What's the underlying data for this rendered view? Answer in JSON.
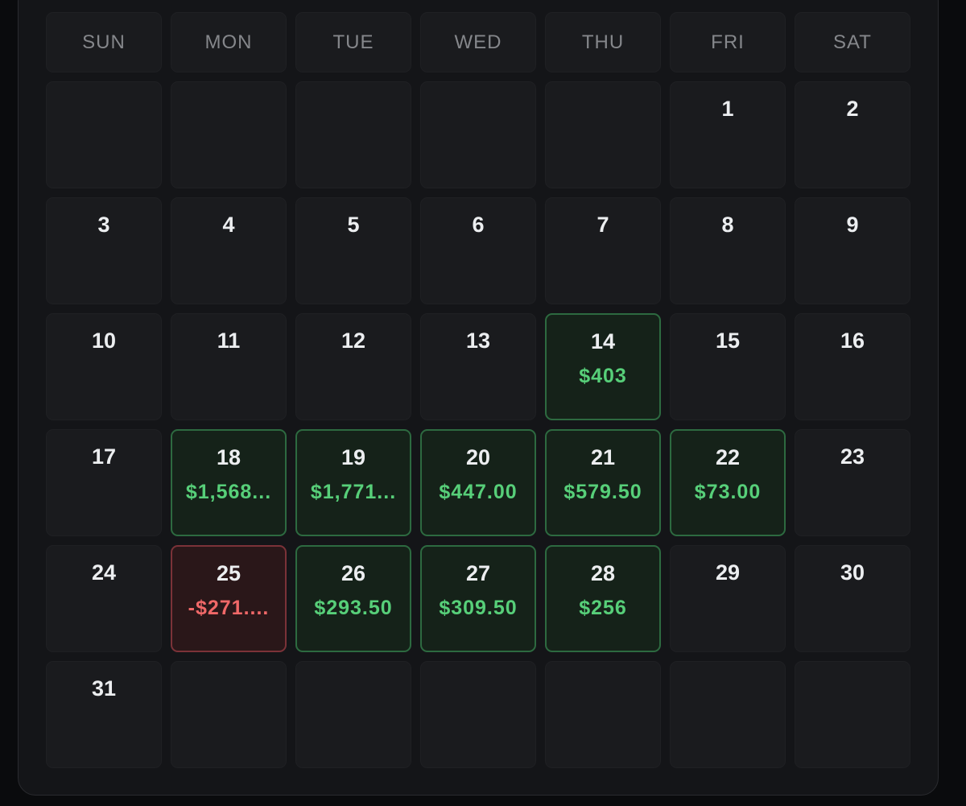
{
  "weekdays": [
    "SUN",
    "MON",
    "TUE",
    "WED",
    "THU",
    "FRI",
    "SAT"
  ],
  "weeks": [
    [
      null,
      null,
      null,
      null,
      null,
      {
        "day": 1
      },
      {
        "day": 2
      }
    ],
    [
      {
        "day": 3
      },
      {
        "day": 4
      },
      {
        "day": 5
      },
      {
        "day": 6
      },
      {
        "day": 7
      },
      {
        "day": 8
      },
      {
        "day": 9
      }
    ],
    [
      {
        "day": 10
      },
      {
        "day": 11
      },
      {
        "day": 12
      },
      {
        "day": 13
      },
      {
        "day": 14,
        "pnl": "$403"
      },
      {
        "day": 15
      },
      {
        "day": 16
      }
    ],
    [
      {
        "day": 17
      },
      {
        "day": 18,
        "pnl": "$1,568..."
      },
      {
        "day": 19,
        "pnl": "$1,771..."
      },
      {
        "day": 20,
        "pnl": "$447.00"
      },
      {
        "day": 21,
        "pnl": "$579.50"
      },
      {
        "day": 22,
        "pnl": "$73.00"
      },
      {
        "day": 23
      }
    ],
    [
      {
        "day": 24
      },
      {
        "day": 25,
        "pnl": "-$271...."
      },
      {
        "day": 26,
        "pnl": "$293.50"
      },
      {
        "day": 27,
        "pnl": "$309.50"
      },
      {
        "day": 28,
        "pnl": "$256"
      },
      {
        "day": 29
      },
      {
        "day": 30
      }
    ],
    [
      {
        "day": 31
      },
      null,
      null,
      null,
      null,
      null,
      null
    ]
  ]
}
